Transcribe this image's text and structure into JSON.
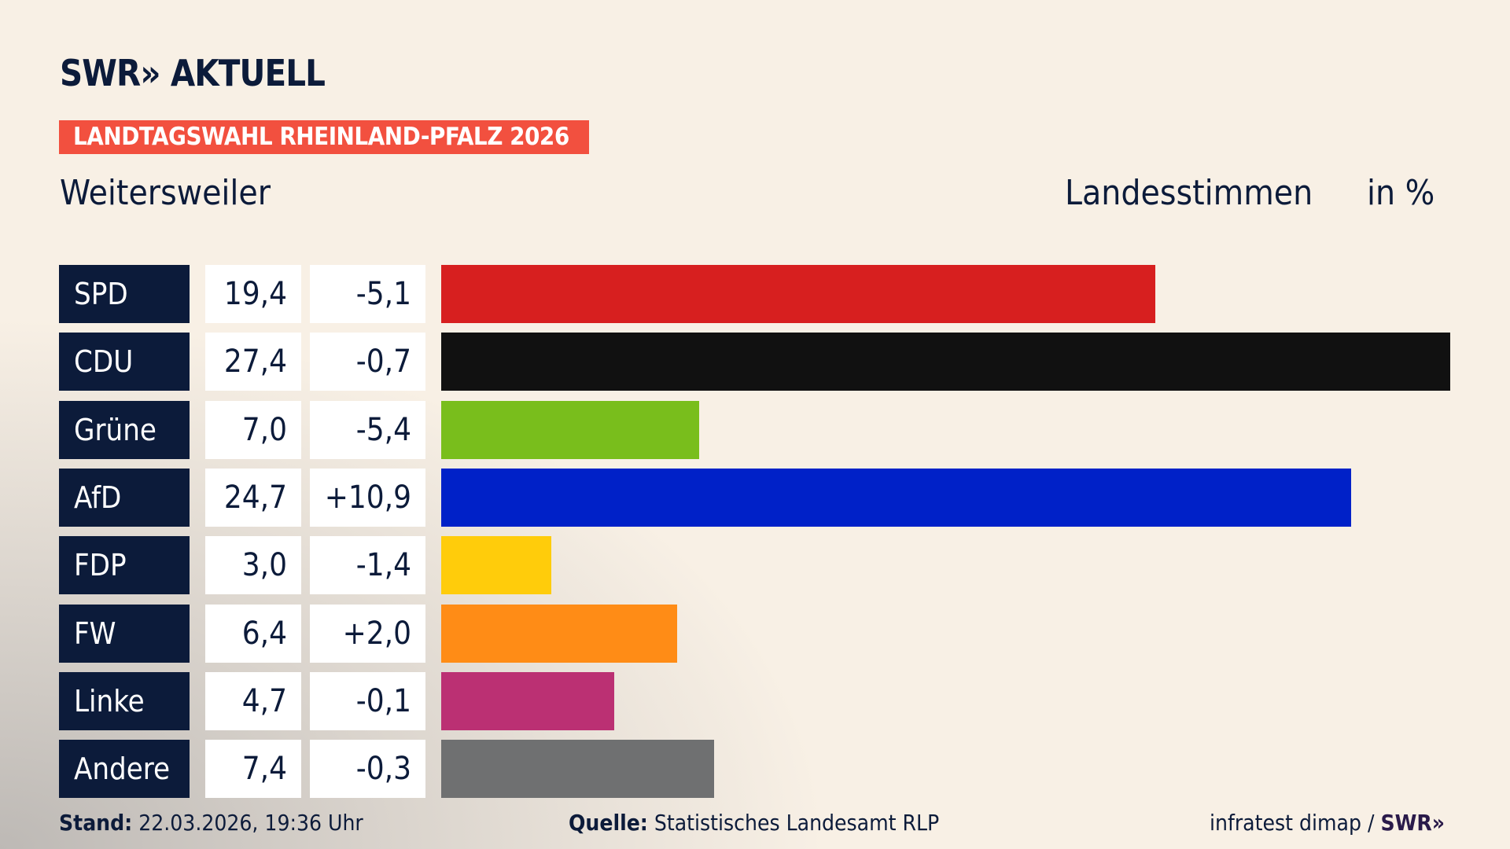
{
  "header": {
    "logo": "SWR» AKTUELL",
    "banner": "LANDTAGSWAHL RHEINLAND-PFALZ 2026",
    "place": "Weitersweiler",
    "measure": "Landesstimmen",
    "unit": "in %"
  },
  "chart_data": {
    "type": "bar",
    "orientation": "horizontal",
    "categories": [
      "SPD",
      "CDU",
      "Grüne",
      "AfD",
      "FDP",
      "FW",
      "Linke",
      "Andere"
    ],
    "values": [
      19.4,
      27.4,
      7.0,
      24.7,
      3.0,
      6.4,
      4.7,
      7.4
    ],
    "value_labels": [
      "19,4",
      "27,4",
      "7,0",
      "24,7",
      "3,0",
      "6,4",
      "4,7",
      "7,4"
    ],
    "change_labels": [
      "-5,1",
      "-0,7",
      "-5,4",
      "+10,9",
      "-1,4",
      "+2,0",
      "-0,1",
      "-0,3"
    ],
    "changes": [
      -5.1,
      -0.7,
      -5.4,
      10.9,
      -1.4,
      2.0,
      -0.1,
      -0.3
    ],
    "colors": [
      "#d71f1f",
      "#111111",
      "#79be1c",
      "#0021c8",
      "#ffcc0b",
      "#ff8c16",
      "#bb3073",
      "#6f7071"
    ],
    "grid": false,
    "legend": "none"
  },
  "footer": {
    "stand_label": "Stand:",
    "stand_value": "22.03.2026, 19:36 Uhr",
    "source_label": "Quelle:",
    "source_value": "Statistisches Landesamt RLP",
    "credit": "infratest dimap /",
    "credit_logo": "SWR»"
  }
}
